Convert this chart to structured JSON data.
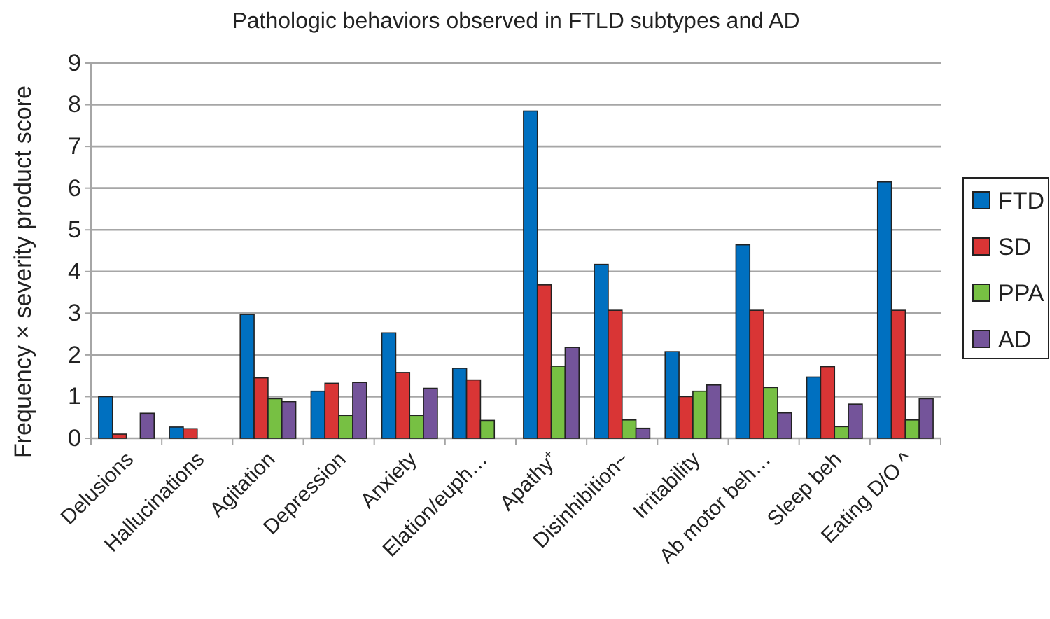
{
  "chart_data": {
    "type": "bar",
    "title": "Pathologic behaviors observed in FTLD subtypes and AD",
    "ylabel": "Frequency × severity product score",
    "categories": [
      "Delusions",
      "Hallucinations",
      "Agitation",
      "Depression",
      "Anxiety",
      "Elation/euph…",
      "Apathy⁺",
      "Disinhibition~",
      "Irritability",
      "Ab motor beh…",
      "Sleep beh",
      "Eating D/O ^"
    ],
    "series": [
      {
        "name": "FTD",
        "color": "#0070c0",
        "values": [
          1.0,
          0.27,
          2.97,
          1.13,
          2.53,
          1.68,
          7.85,
          4.17,
          2.08,
          4.64,
          1.47,
          6.15
        ]
      },
      {
        "name": "SD",
        "color": "#d93535",
        "values": [
          0.1,
          0.23,
          1.45,
          1.32,
          1.58,
          1.4,
          3.68,
          3.07,
          1.0,
          3.07,
          1.72,
          3.07
        ]
      },
      {
        "name": "PPA",
        "color": "#77c043",
        "values": [
          null,
          null,
          0.95,
          0.55,
          0.55,
          0.43,
          1.73,
          0.44,
          1.13,
          1.22,
          0.28,
          0.44
        ]
      },
      {
        "name": "AD",
        "color": "#74549a",
        "values": [
          0.6,
          null,
          0.88,
          1.34,
          1.2,
          null,
          2.18,
          0.24,
          1.28,
          0.61,
          0.82,
          0.95
        ]
      }
    ],
    "ylim": [
      0,
      9
    ],
    "yticks": [
      0,
      1,
      2,
      3,
      4,
      5,
      6,
      7,
      8,
      9
    ],
    "grid": "y",
    "legend": "right"
  }
}
